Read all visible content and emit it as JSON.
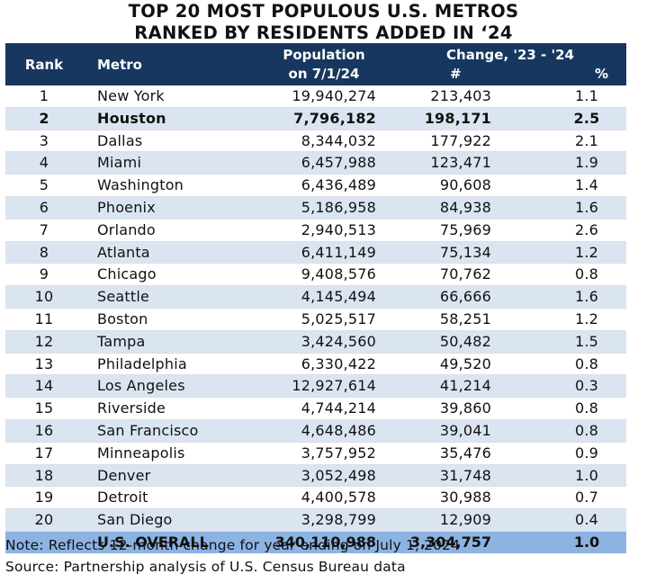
{
  "title_line1": "TOP 20 MOST POPULOUS U.S. METROS",
  "title_line2": "RANKED BY RESIDENTS ADDED IN ‘24",
  "headers": {
    "rank": "Rank",
    "metro": "Metro",
    "population_line1": "Population",
    "population_line2": "on 7/1/24",
    "change_line1": "Change, '23 - '24",
    "change_num": "#",
    "change_pct": "%"
  },
  "chart_data": {
    "type": "table",
    "columns": [
      "Rank",
      "Metro",
      "Population on 7/1/24",
      "Change, '23 - '24 #",
      "Change, '23 - '24 %"
    ],
    "rows": [
      {
        "rank": "1",
        "metro": "New York",
        "population": "19,940,274",
        "change": "213,403",
        "pct": "1.1"
      },
      {
        "rank": "2",
        "metro": "Houston",
        "population": "7,796,182",
        "change": "198,171",
        "pct": "2.5",
        "bold": true
      },
      {
        "rank": "3",
        "metro": "Dallas",
        "population": "8,344,032",
        "change": "177,922",
        "pct": "2.1"
      },
      {
        "rank": "4",
        "metro": "Miami",
        "population": "6,457,988",
        "change": "123,471",
        "pct": "1.9"
      },
      {
        "rank": "5",
        "metro": "Washington",
        "population": "6,436,489",
        "change": "90,608",
        "pct": "1.4"
      },
      {
        "rank": "6",
        "metro": "Phoenix",
        "population": "5,186,958",
        "change": "84,938",
        "pct": "1.6"
      },
      {
        "rank": "7",
        "metro": "Orlando",
        "population": "2,940,513",
        "change": "75,969",
        "pct": "2.6"
      },
      {
        "rank": "8",
        "metro": "Atlanta",
        "population": "6,411,149",
        "change": "75,134",
        "pct": "1.2"
      },
      {
        "rank": "9",
        "metro": "Chicago",
        "population": "9,408,576",
        "change": "70,762",
        "pct": "0.8"
      },
      {
        "rank": "10",
        "metro": "Seattle",
        "population": "4,145,494",
        "change": "66,666",
        "pct": "1.6"
      },
      {
        "rank": "11",
        "metro": "Boston",
        "population": "5,025,517",
        "change": "58,251",
        "pct": "1.2"
      },
      {
        "rank": "12",
        "metro": "Tampa",
        "population": "3,424,560",
        "change": "50,482",
        "pct": "1.5"
      },
      {
        "rank": "13",
        "metro": "Philadelphia",
        "population": "6,330,422",
        "change": "49,520",
        "pct": "0.8"
      },
      {
        "rank": "14",
        "metro": "Los Angeles",
        "population": "12,927,614",
        "change": "41,214",
        "pct": "0.3"
      },
      {
        "rank": "15",
        "metro": "Riverside",
        "population": "4,744,214",
        "change": "39,860",
        "pct": "0.8"
      },
      {
        "rank": "16",
        "metro": "San Francisco",
        "population": "4,648,486",
        "change": "39,041",
        "pct": "0.8"
      },
      {
        "rank": "17",
        "metro": "Minneapolis",
        "population": "3,757,952",
        "change": "35,476",
        "pct": "0.9"
      },
      {
        "rank": "18",
        "metro": "Denver",
        "population": "3,052,498",
        "change": "31,748",
        "pct": "1.0"
      },
      {
        "rank": "19",
        "metro": "Detroit",
        "population": "4,400,578",
        "change": "30,988",
        "pct": "0.7"
      },
      {
        "rank": "20",
        "metro": "San Diego",
        "population": "3,298,799",
        "change": "12,909",
        "pct": "0.4"
      }
    ],
    "total": {
      "metro": "U.S. OVERALL",
      "population": "340,110,988",
      "change": "3,304,757",
      "pct": "1.0"
    }
  },
  "note": "Note: Reflects 12-month change for year ending on July 1, 2024",
  "source": "Source: Partnership analysis of U.S. Census Bureau data",
  "colors": {
    "header_bg": "#17375e",
    "stripe": "#dbe5f1",
    "total_bg": "#8db3e2"
  }
}
